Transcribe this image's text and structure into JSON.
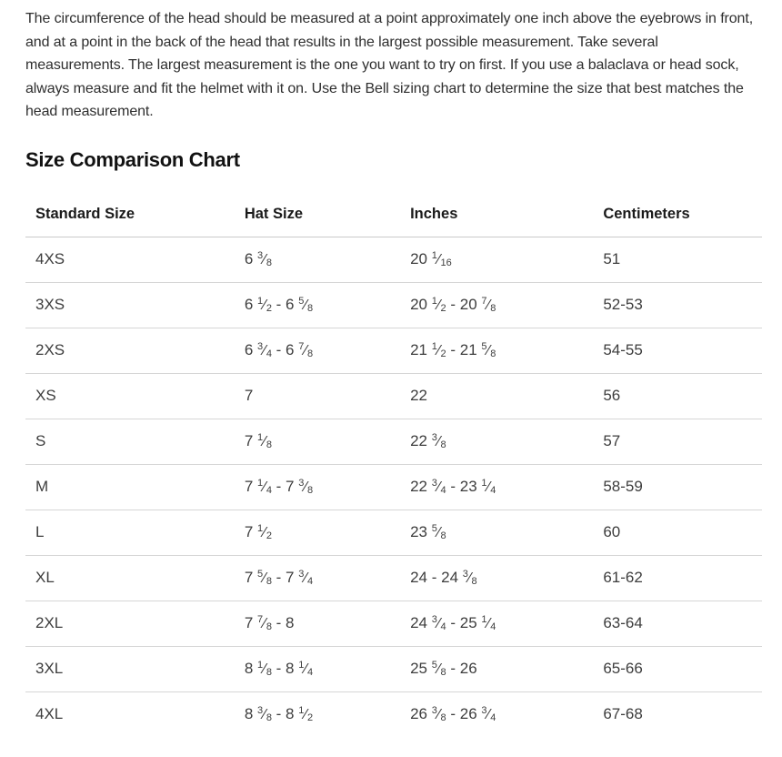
{
  "page": {
    "intro_text": "The circumference of the head should be measured at a point approximately one inch above the eyebrows in front, and at a point in the back of the head that results in the largest possible measurement. Take several measurements. The largest measurement is the one you want to try on first. If you use a balaclava or head sock, always measure and fit the helmet with it on. Use the Bell sizing chart to determine the size that best matches the head measurement.",
    "section_title": "Size Comparison Chart"
  },
  "table": {
    "columns": [
      "Standard Size",
      "Hat Size",
      "Inches",
      "Centimeters"
    ],
    "rows": [
      [
        "4XS",
        "6 3/8",
        "20 1/16",
        "51"
      ],
      [
        "3XS",
        "6 1/2 - 6 5/8",
        "20 1/2 - 20 7/8",
        "52-53"
      ],
      [
        "2XS",
        "6 3/4 - 6 7/8",
        "21 1/2 - 21 5/8",
        "54-55"
      ],
      [
        "XS",
        "7",
        "22",
        "56"
      ],
      [
        "S",
        "7 1/8",
        "22 3/8",
        "57"
      ],
      [
        "M",
        "7 1/4 - 7 3/8",
        "22 3/4 - 23 1/4",
        "58-59"
      ],
      [
        "L",
        "7 1/2",
        "23 5/8",
        "60"
      ],
      [
        "XL",
        "7 5/8 - 7 3/4",
        "24 - 24 3/8",
        "61-62"
      ],
      [
        "2XL",
        "7 7/8 - 8",
        "24 3/4 - 25 1/4",
        "63-64"
      ],
      [
        "3XL",
        "8 1/8 - 8 1/4",
        "25 5/8 - 26",
        "65-66"
      ],
      [
        "4XL",
        "8 3/8 - 8 1/2",
        "26 3/8 - 26 3/4",
        "67-68"
      ]
    ]
  },
  "colors": {
    "body_text": "#2e2e2e",
    "heading_text": "#121212",
    "cell_text": "#3d3d3d",
    "row_border": "#d6d6d6",
    "header_border": "#c9c9c9",
    "background": "#ffffff"
  }
}
